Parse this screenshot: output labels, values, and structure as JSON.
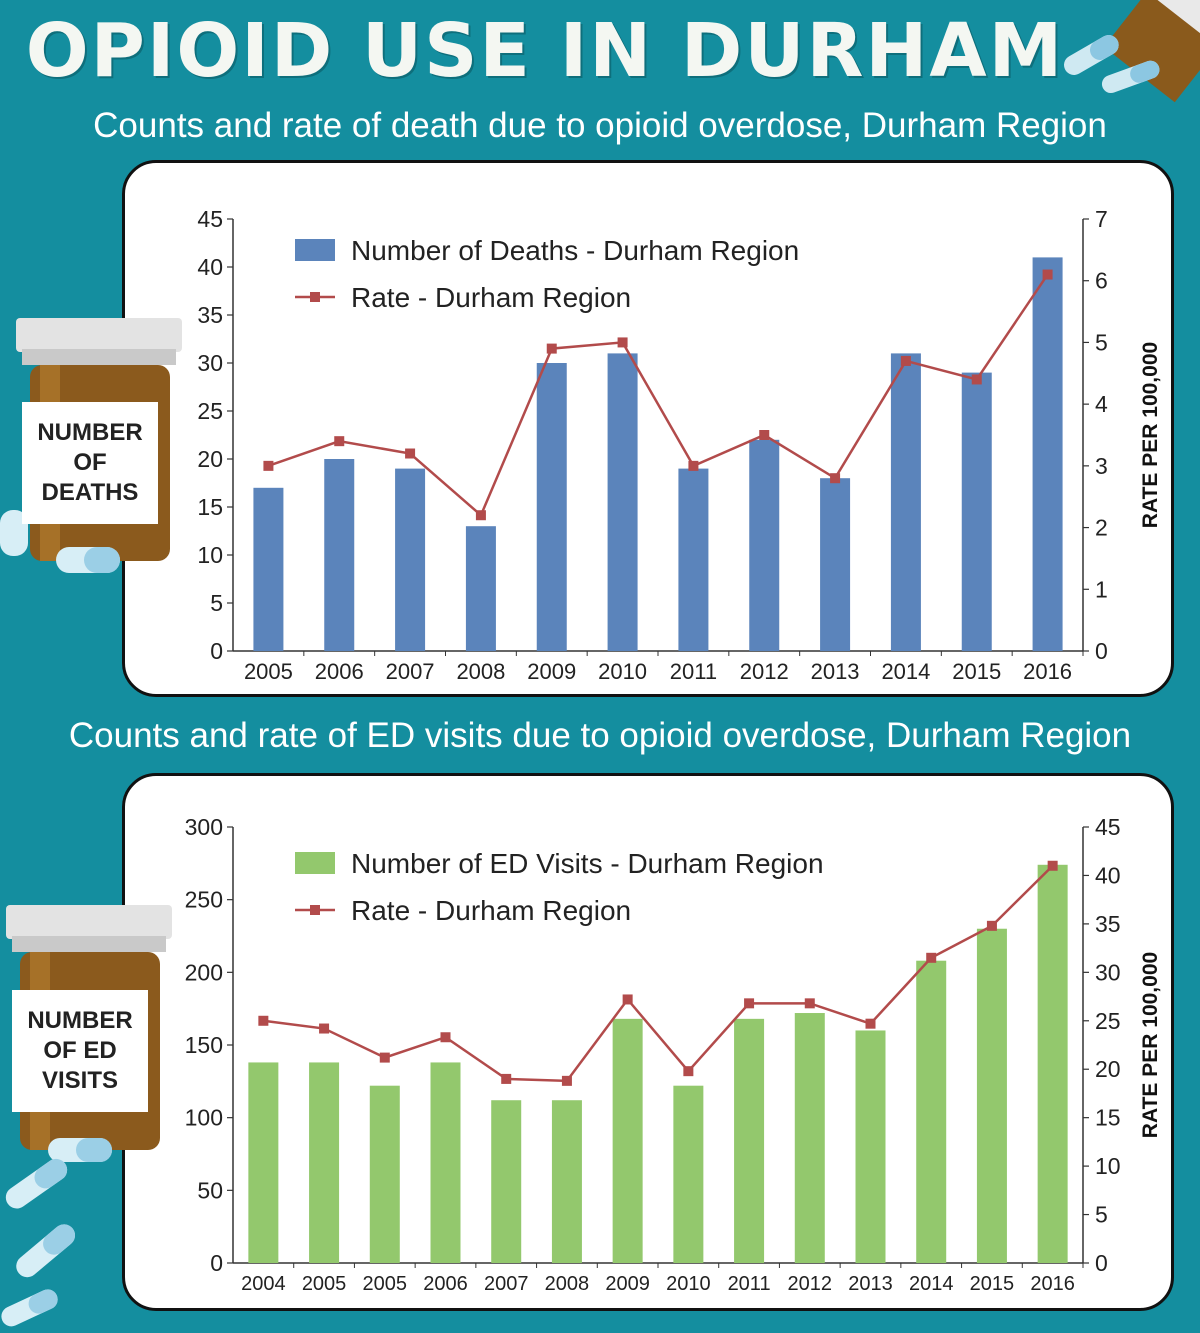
{
  "page": {
    "title": "OPIOID USE IN DURHAM"
  },
  "chart_data": [
    {
      "type": "bar",
      "title": "Counts and rate of death due to opioid overdose, Durham Region",
      "categories": [
        "2005",
        "2006",
        "2007",
        "2008",
        "2009",
        "2010",
        "2011",
        "2012",
        "2013",
        "2014",
        "2015",
        "2016"
      ],
      "series": [
        {
          "name": "Number of Deaths - Durham Region",
          "type": "bar",
          "axis": "left",
          "color": "#5b84bb",
          "values": [
            17,
            20,
            19,
            13,
            30,
            31,
            19,
            22,
            18,
            31,
            29,
            41
          ]
        },
        {
          "name": "Rate - Durham Region",
          "type": "line",
          "axis": "right",
          "color": "#b24b4b",
          "values": [
            3.0,
            3.4,
            3.2,
            2.2,
            4.9,
            5.0,
            3.0,
            3.5,
            2.8,
            4.7,
            4.4,
            6.1
          ]
        }
      ],
      "ylabel_left": "NUMBER OF DEATHS",
      "ylabel_right": "RATE PER 100,000",
      "ylim_left": [
        0,
        45
      ],
      "yticks_left": [
        0,
        5,
        10,
        15,
        20,
        25,
        30,
        35,
        40,
        45
      ],
      "ylim_right": [
        0,
        7
      ],
      "yticks_right": [
        0,
        1,
        2,
        3,
        4,
        5,
        6,
        7
      ],
      "legend": "top-left",
      "grid": false
    },
    {
      "type": "bar",
      "title": "Counts and rate of ED visits due to opioid overdose, Durham Region",
      "categories": [
        "2004",
        "2005",
        "2005",
        "2006",
        "2007",
        "2008",
        "2009",
        "2010",
        "2011",
        "2012",
        "2013",
        "2014",
        "2015",
        "2016"
      ],
      "series": [
        {
          "name": "Number of ED Visits - Durham Region",
          "type": "bar",
          "axis": "left",
          "color": "#93c86d",
          "values": [
            138,
            138,
            122,
            138,
            112,
            112,
            168,
            122,
            168,
            172,
            160,
            208,
            230,
            274
          ]
        },
        {
          "name": "Rate - Durham Region",
          "type": "line",
          "axis": "right",
          "color": "#b24b4b",
          "values": [
            25.0,
            24.2,
            21.2,
            23.3,
            19.0,
            18.8,
            27.2,
            19.8,
            26.8,
            26.8,
            24.7,
            31.5,
            34.8,
            41.0
          ]
        }
      ],
      "ylabel_left": "NUMBER OF ED VISITS",
      "ylabel_right": "RATE PER 100,000",
      "ylim_left": [
        0,
        300
      ],
      "yticks_left": [
        0,
        50,
        100,
        150,
        200,
        250,
        300
      ],
      "ylim_right": [
        0,
        45
      ],
      "yticks_right": [
        0,
        5,
        10,
        15,
        20,
        25,
        30,
        35,
        40,
        45
      ],
      "legend": "top-left",
      "grid": false
    }
  ]
}
